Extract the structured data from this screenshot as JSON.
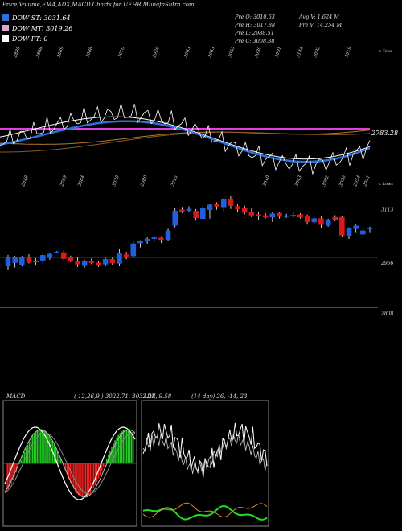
{
  "title": "Price,Volume,EMA,ADX,MACD Charts for UEHR MunafaSutra.com",
  "legend": [
    {
      "label": "DOW ST: 3031.64",
      "color": "#2f6fd8"
    },
    {
      "label": "DOW MT: 3019.26",
      "color": "#d9a8d0"
    },
    {
      "label": "DOW PT: 0",
      "color": "#ffffff"
    }
  ],
  "stats": {
    "pre_open": "Pre  O: 3010.63",
    "pre_high": "Pre  H: 3017.88",
    "pre_low": "Pre  L: 2988.51",
    "pre_close": "Pre  C: 3008.38",
    "avg_vol": "Avg V: 1.624  M",
    "pre_vol": "Pre  V: 14.254  M"
  },
  "colors": {
    "up": "#2060e0",
    "down": "#e01818",
    "ema_fast": "#2f6fd8",
    "magenta": "#e040e0",
    "hline": "#8a4a20",
    "macd_pos": "#22cc22",
    "macd_neg": "#ee2222",
    "adx_green": "#22dd22",
    "adx_orange": "#e08a1a"
  },
  "chart_data": [
    {
      "type": "line",
      "panel": "ema",
      "label_top": "< Tops",
      "label_bottom": "< Lows",
      "magenta_level_label": "2783.28",
      "top_labels": [
        "2885",
        "2868",
        "2889",
        "3088",
        "3010",
        "2926",
        "2963",
        "2983",
        "3060",
        "3030",
        "3091",
        "3144",
        "3092",
        "3019"
      ],
      "bottom_labels": [
        "2848",
        "2769",
        "2884",
        "3038",
        "2980",
        "2915",
        "3010",
        "3043",
        "3092",
        "3036",
        "2954",
        "2911"
      ]
    },
    {
      "type": "candlestick",
      "panel": "price",
      "price_levels": [
        "3113",
        "2956",
        "2808"
      ],
      "ylim": [
        2790,
        3145
      ],
      "candles": [
        {
          "o": 2931,
          "h": 2963,
          "l": 2918,
          "c": 2955
        },
        {
          "o": 2940,
          "h": 2960,
          "l": 2926,
          "c": 2955
        },
        {
          "o": 2935,
          "h": 2960,
          "l": 2930,
          "c": 2957
        },
        {
          "o": 2957,
          "h": 2965,
          "l": 2938,
          "c": 2941
        },
        {
          "o": 2942,
          "h": 2953,
          "l": 2934,
          "c": 2946
        },
        {
          "o": 2947,
          "h": 2967,
          "l": 2937,
          "c": 2962
        },
        {
          "o": 2955,
          "h": 2970,
          "l": 2949,
          "c": 2965
        },
        {
          "o": 2971,
          "h": 2974,
          "l": 2968,
          "c": 2972
        },
        {
          "o": 2970,
          "h": 2976,
          "l": 2948,
          "c": 2952
        },
        {
          "o": 2956,
          "h": 2961,
          "l": 2942,
          "c": 2946
        },
        {
          "o": 2943,
          "h": 2955,
          "l": 2928,
          "c": 2936
        },
        {
          "o": 2934,
          "h": 2948,
          "l": 2926,
          "c": 2945
        },
        {
          "o": 2945,
          "h": 2953,
          "l": 2936,
          "c": 2940
        },
        {
          "o": 2940,
          "h": 2945,
          "l": 2928,
          "c": 2934
        },
        {
          "o": 2936,
          "h": 2954,
          "l": 2931,
          "c": 2950
        },
        {
          "o": 2950,
          "h": 2955,
          "l": 2934,
          "c": 2939
        },
        {
          "o": 2938,
          "h": 2980,
          "l": 2930,
          "c": 2968
        },
        {
          "o": 2964,
          "h": 2972,
          "l": 2950,
          "c": 2956
        },
        {
          "o": 2960,
          "h": 3005,
          "l": 2954,
          "c": 2996
        },
        {
          "o": 2998,
          "h": 3006,
          "l": 2985,
          "c": 3004
        },
        {
          "o": 3004,
          "h": 3015,
          "l": 2996,
          "c": 3010
        },
        {
          "o": 3011,
          "h": 3018,
          "l": 3000,
          "c": 3014
        },
        {
          "o": 3013,
          "h": 3018,
          "l": 2998,
          "c": 3008
        },
        {
          "o": 3008,
          "h": 3040,
          "l": 3004,
          "c": 3034
        },
        {
          "o": 3050,
          "h": 3102,
          "l": 3044,
          "c": 3092
        },
        {
          "o": 3096,
          "h": 3104,
          "l": 3086,
          "c": 3090
        },
        {
          "o": 3094,
          "h": 3106,
          "l": 3088,
          "c": 3098
        },
        {
          "o": 3092,
          "h": 3098,
          "l": 3064,
          "c": 3072
        },
        {
          "o": 3070,
          "h": 3108,
          "l": 3066,
          "c": 3100
        },
        {
          "o": 3096,
          "h": 3112,
          "l": 3070,
          "c": 3110
        },
        {
          "o": 3112,
          "h": 3118,
          "l": 3096,
          "c": 3106
        },
        {
          "o": 3104,
          "h": 3130,
          "l": 3090,
          "c": 3128
        },
        {
          "o": 3128,
          "h": 3138,
          "l": 3098,
          "c": 3108
        },
        {
          "o": 3106,
          "h": 3114,
          "l": 3090,
          "c": 3098
        },
        {
          "o": 3100,
          "h": 3108,
          "l": 3082,
          "c": 3088
        },
        {
          "o": 3088,
          "h": 3100,
          "l": 3074,
          "c": 3080
        },
        {
          "o": 3082,
          "h": 3090,
          "l": 3066,
          "c": 3079
        },
        {
          "o": 3079,
          "h": 3086,
          "l": 3070,
          "c": 3074
        },
        {
          "o": 3074,
          "h": 3088,
          "l": 3060,
          "c": 3084
        },
        {
          "o": 3086,
          "h": 3090,
          "l": 3070,
          "c": 3076
        },
        {
          "o": 3078,
          "h": 3084,
          "l": 3072,
          "c": 3078
        },
        {
          "o": 3078,
          "h": 3090,
          "l": 3072,
          "c": 3080
        },
        {
          "o": 3082,
          "h": 3086,
          "l": 3070,
          "c": 3074
        },
        {
          "o": 3076,
          "h": 3082,
          "l": 3052,
          "c": 3060
        },
        {
          "o": 3060,
          "h": 3074,
          "l": 3054,
          "c": 3070
        },
        {
          "o": 3070,
          "h": 3076,
          "l": 3042,
          "c": 3052
        },
        {
          "o": 3050,
          "h": 3070,
          "l": 3046,
          "c": 3066
        },
        {
          "o": 3074,
          "h": 3080,
          "l": 3062,
          "c": 3066
        },
        {
          "o": 3074,
          "h": 3078,
          "l": 3016,
          "c": 3021
        },
        {
          "o": 3020,
          "h": 3044,
          "l": 3010,
          "c": 3042
        },
        {
          "o": 3040,
          "h": 3052,
          "l": 3030,
          "c": 3048
        },
        {
          "o": 3024,
          "h": 3040,
          "l": 3018,
          "c": 3034
        },
        {
          "o": 3040,
          "h": 3046,
          "l": 3030,
          "c": 3042
        }
      ]
    },
    {
      "type": "bar",
      "panel": "macd",
      "label": "MACD",
      "params": "( 12,26,9 ) 3022.71,  3032.28,  9.58"
    },
    {
      "type": "line",
      "panel": "adx",
      "label": "ADX",
      "params": "(14  day) 26,  -14,  23"
    }
  ]
}
